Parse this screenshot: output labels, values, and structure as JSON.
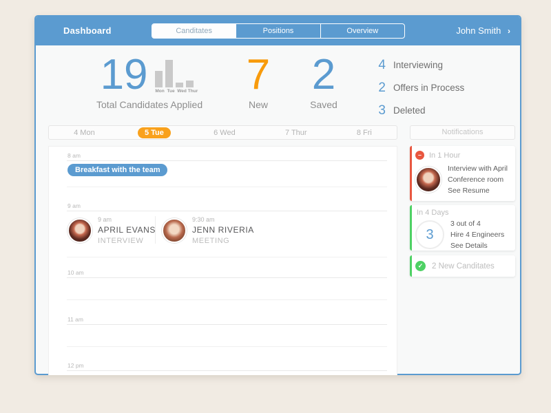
{
  "header": {
    "app_title": "Dashboard",
    "tabs": [
      {
        "label": "Canditates",
        "active": true
      },
      {
        "label": "Positions",
        "active": false
      },
      {
        "label": "Overview",
        "active": false
      }
    ],
    "user_name": "John Smith",
    "user_chevron": "›"
  },
  "stats": {
    "total": {
      "value": "19",
      "caption": "Total Candidates Applied"
    },
    "new": {
      "value": "7",
      "caption": "New"
    },
    "saved": {
      "value": "2",
      "caption": "Saved"
    },
    "breakdown": [
      {
        "count": "4",
        "label": "Interviewing"
      },
      {
        "count": "2",
        "label": "Offers in Process"
      },
      {
        "count": "3",
        "label": "Deleted"
      }
    ]
  },
  "chart_data": {
    "type": "bar",
    "title": "Total Candidates Applied",
    "categories": [
      "Mon",
      "Tue",
      "Wed",
      "Thur"
    ],
    "values": [
      24,
      40,
      7,
      10
    ],
    "ylim": [
      0,
      40
    ],
    "unit": "relative bar height (px), no axis shown",
    "bar_color": "#c9c9c9",
    "grid": false,
    "legend": false
  },
  "day_tabs": [
    {
      "label": "4 Mon",
      "active": false
    },
    {
      "label": "5 Tue",
      "active": true
    },
    {
      "label": "6 Wed",
      "active": false
    },
    {
      "label": "7 Thur",
      "active": false
    },
    {
      "label": "8 Fri",
      "active": false
    }
  ],
  "notifications_header": "Notifications",
  "calendar": {
    "times": {
      "t8": "8 am",
      "t9": "9 am",
      "t10": "10 am",
      "t11": "11 am",
      "t12": "12 pm"
    },
    "breakfast": {
      "title": "Breakfast with the team",
      "slot": "8 am"
    },
    "events": [
      {
        "time": "9 am",
        "name": "APRIL EVANS",
        "type": "INTERVIEW"
      },
      {
        "time": "9:30 am",
        "name": "JENN RIVERIA",
        "type": "MEETING"
      }
    ]
  },
  "notifications": [
    {
      "timing": "In 1 Hour",
      "icon": "minus-circle",
      "accent": "#e8563f",
      "glyph": "–",
      "lines": [
        "Interview with April",
        "Conference room",
        "See Resume"
      ]
    },
    {
      "timing": "In 4 Days",
      "badge": "3",
      "accent": "#4ed164",
      "lines": [
        "3 out of 4",
        "Hire 4 Engineers",
        "See Details"
      ]
    },
    {
      "text": "2 New Canditates",
      "icon": "check-circle",
      "accent": "#4ed164",
      "glyph": "✓"
    }
  ],
  "colors": {
    "brand_blue": "#5b9bd0",
    "accent_orange": "#f89b0c",
    "alert_red": "#e8563f",
    "success_green": "#4ed164",
    "bar_gray": "#c9c9c9",
    "page_background": "#f1ebe3"
  }
}
